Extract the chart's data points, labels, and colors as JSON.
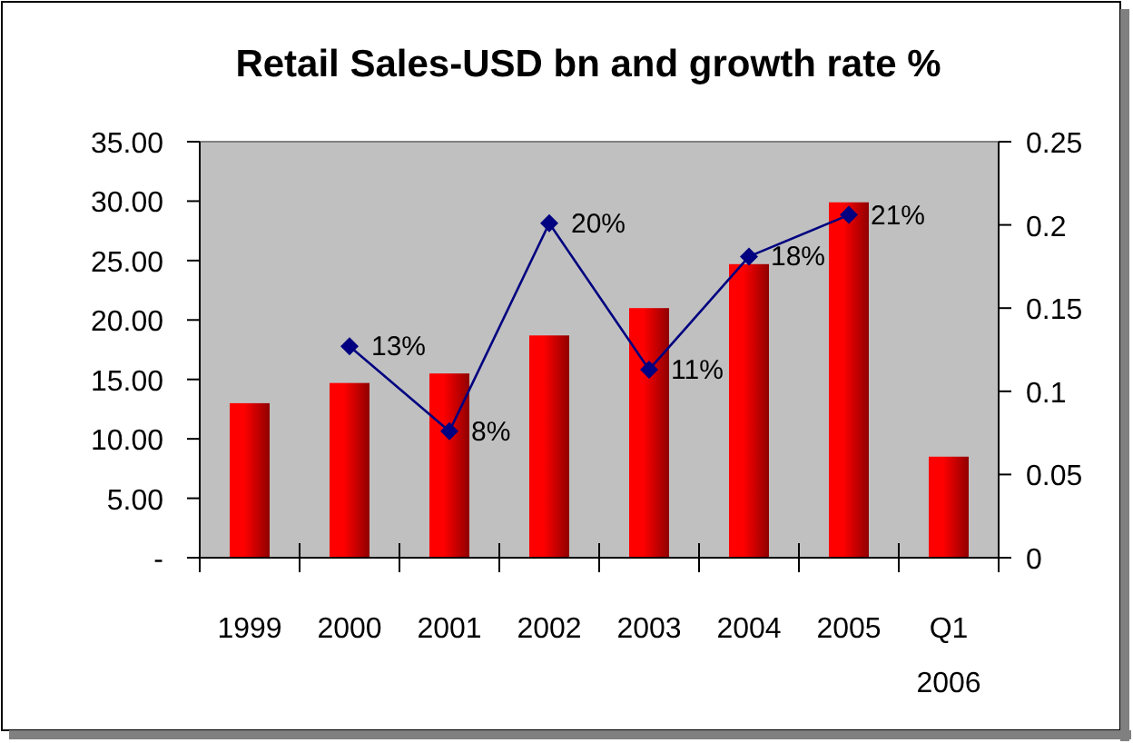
{
  "chart_data": {
    "type": "bar",
    "title": "Retail Sales-USD bn and growth rate %",
    "categories": [
      "1999",
      "2000",
      "2001",
      "2002",
      "2003",
      "2004",
      "2005",
      "Q1\n2006"
    ],
    "series": [
      {
        "color": "#ff0000",
        "values": [
          13.0,
          14.7,
          15.5,
          18.7,
          21.0,
          24.7,
          29.9,
          8.5
        ]
      },
      {
        "type": "line",
        "axis": "y2",
        "color": "#000080",
        "marker": "diamond",
        "values": [
          null,
          0.127,
          0.076,
          0.201,
          0.113,
          0.181,
          0.206,
          null
        ],
        "value_labels": [
          null,
          "13%",
          "8%",
          "20%",
          "11%",
          "18%",
          "21%",
          null
        ]
      }
    ],
    "ylim": [
      0,
      35
    ],
    "yticks": [
      {
        "value": 0,
        "label": "-"
      },
      {
        "value": 5,
        "label": "5.00"
      },
      {
        "value": 10,
        "label": "10.00"
      },
      {
        "value": 15,
        "label": "15.00"
      },
      {
        "value": 20,
        "label": "20.00"
      },
      {
        "value": 25,
        "label": "25.00"
      },
      {
        "value": 30,
        "label": "30.00"
      },
      {
        "value": 35,
        "label": "35.00"
      }
    ],
    "y2lim": [
      0,
      0.25
    ],
    "y2ticks": [
      0,
      0.05,
      0.1,
      0.15,
      0.2,
      0.25
    ],
    "grid": false
  }
}
